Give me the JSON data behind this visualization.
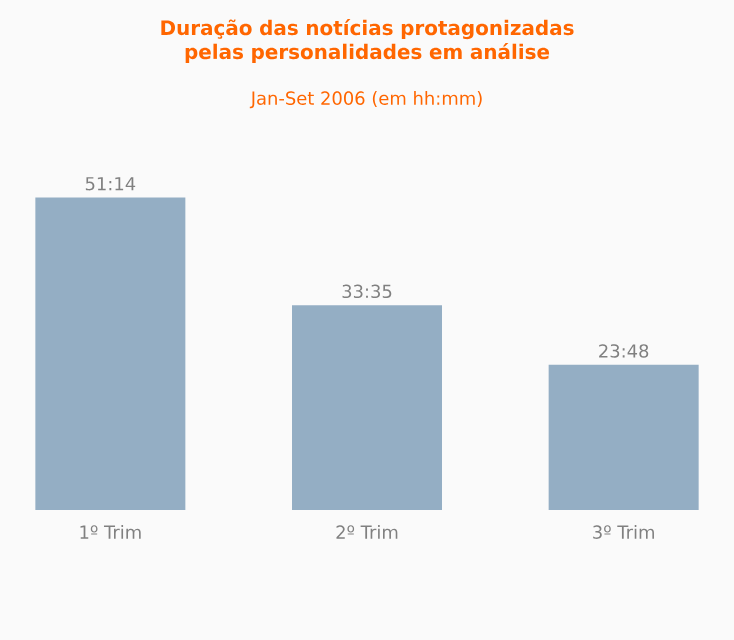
{
  "chart_data": {
    "type": "bar",
    "title": "Duração das notícias protagonizadas pelas personalidades em análise",
    "subtitle": "Jan-Set 2006 (em hh:mm)",
    "categories": [
      "1º Trim",
      "2º Trim",
      "3º Trim"
    ],
    "values": [
      51.23,
      33.58,
      23.8
    ],
    "value_labels": [
      "51:14",
      "33:35",
      "23:48"
    ],
    "color": "#94aec4"
  }
}
